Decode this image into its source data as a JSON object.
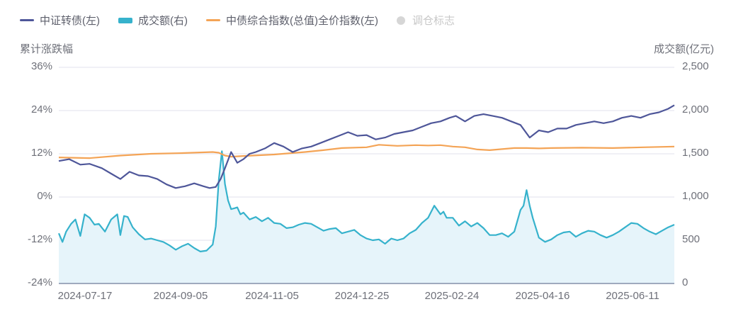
{
  "legend": [
    {
      "label": "中证转债(左)",
      "color": "#4e5699",
      "marker": "line"
    },
    {
      "label": "成交额(右)",
      "color": "#36b2cc",
      "marker": "rect"
    },
    {
      "label": "中债综合指数(总值)全价指数(左)",
      "color": "#f4a456",
      "marker": "line"
    },
    {
      "label": "调仓标志",
      "color": "#d6d6d6",
      "marker": "dot",
      "disabled": true
    }
  ],
  "axes": {
    "left_title": "累计涨跌幅",
    "right_title": "成交额(亿元)",
    "left_ticks": [
      "36%",
      "24%",
      "12%",
      "0%",
      "-12%",
      "-24%"
    ],
    "right_ticks": [
      "2,500",
      "2,000",
      "1,500",
      "1,000",
      "500",
      "0"
    ],
    "x_ticks": [
      "2024-07-17",
      "2024-09-05",
      "2024-11-05",
      "2024-12-25",
      "2025-02-24",
      "2025-04-16",
      "2025-06-11"
    ]
  },
  "chart_data": {
    "type": "line",
    "title": "",
    "xlabel": "",
    "ylabel_left": "累计涨跌幅",
    "ylabel_right": "成交额(亿元)",
    "ylim_left": [
      -24,
      36
    ],
    "ylim_right": [
      0,
      2500
    ],
    "grid": true,
    "legend_position": "top-left",
    "x_range": [
      "2024-07-01",
      "2025-07-04"
    ],
    "x_ticks": [
      "2024-07-17",
      "2024-09-05",
      "2024-11-05",
      "2024-12-25",
      "2025-02-24",
      "2025-04-16",
      "2025-06-11"
    ],
    "series": [
      {
        "name": "中证转债(左)",
        "axis": "left",
        "type": "line",
        "color": "#4e5699",
        "x_frac": [
          0,
          0.017,
          0.035,
          0.05,
          0.07,
          0.085,
          0.1,
          0.115,
          0.13,
          0.145,
          0.16,
          0.175,
          0.19,
          0.205,
          0.22,
          0.235,
          0.245,
          0.255,
          0.263,
          0.27,
          0.28,
          0.29,
          0.3,
          0.31,
          0.32,
          0.335,
          0.35,
          0.365,
          0.38,
          0.395,
          0.41,
          0.425,
          0.44,
          0.455,
          0.47,
          0.485,
          0.5,
          0.515,
          0.53,
          0.545,
          0.56,
          0.575,
          0.59,
          0.605,
          0.62,
          0.635,
          0.645,
          0.66,
          0.675,
          0.69,
          0.705,
          0.72,
          0.735,
          0.75,
          0.765,
          0.78,
          0.795,
          0.81,
          0.825,
          0.84,
          0.855,
          0.87,
          0.885,
          0.9,
          0.915,
          0.93,
          0.945,
          0.96,
          0.975,
          0.99,
          1.0
        ],
        "values": [
          10,
          10.5,
          9,
          9.2,
          8,
          6.5,
          5,
          7,
          6,
          5.8,
          5,
          3.5,
          2.5,
          3,
          3.8,
          3,
          2.5,
          2.8,
          5,
          8,
          12.5,
          9.5,
          10.5,
          12,
          12.5,
          13.5,
          15,
          14,
          12.5,
          13.5,
          14,
          15,
          16,
          17,
          18,
          17,
          17.2,
          16,
          16.5,
          17.5,
          18,
          18.5,
          19.5,
          20.5,
          21,
          22,
          22.5,
          21,
          22.5,
          23,
          22.5,
          22,
          21,
          20,
          16.5,
          18.5,
          18,
          19,
          19,
          20,
          20.5,
          21,
          20.5,
          21,
          22,
          22.5,
          22,
          23,
          23.5,
          24.5,
          25.5
        ]
      },
      {
        "name": "中债综合指数(总值)全价指数(左)",
        "axis": "left",
        "type": "line",
        "color": "#f4a456",
        "x_frac": [
          0,
          0.05,
          0.1,
          0.15,
          0.2,
          0.25,
          0.26,
          0.27,
          0.28,
          0.3,
          0.35,
          0.4,
          0.43,
          0.46,
          0.5,
          0.52,
          0.55,
          0.58,
          0.6,
          0.62,
          0.64,
          0.66,
          0.68,
          0.7,
          0.72,
          0.74,
          0.76,
          0.78,
          0.8,
          0.85,
          0.9,
          0.95,
          1.0
        ],
        "values": [
          11,
          10.8,
          11.5,
          12,
          12.2,
          12.5,
          12.3,
          11.5,
          11.2,
          11.4,
          11.8,
          12.5,
          13,
          13.6,
          13.8,
          14.5,
          14.2,
          14.4,
          14.3,
          14.4,
          14.0,
          13.8,
          13.2,
          13.0,
          13.3,
          13.6,
          13.6,
          13.5,
          13.6,
          13.7,
          13.6,
          13.8,
          14.0
        ]
      },
      {
        "name": "成交额(右)",
        "axis": "right",
        "type": "area",
        "color": "#36b2cc",
        "fill": "#e6f4fa",
        "x_frac": [
          0,
          0.006,
          0.012,
          0.02,
          0.027,
          0.035,
          0.042,
          0.05,
          0.058,
          0.065,
          0.075,
          0.085,
          0.095,
          0.1,
          0.106,
          0.112,
          0.12,
          0.13,
          0.14,
          0.15,
          0.16,
          0.17,
          0.18,
          0.19,
          0.2,
          0.21,
          0.22,
          0.23,
          0.24,
          0.25,
          0.255,
          0.26,
          0.265,
          0.27,
          0.275,
          0.28,
          0.285,
          0.29,
          0.295,
          0.3,
          0.31,
          0.32,
          0.33,
          0.34,
          0.35,
          0.36,
          0.37,
          0.38,
          0.39,
          0.4,
          0.41,
          0.42,
          0.43,
          0.44,
          0.45,
          0.46,
          0.47,
          0.48,
          0.49,
          0.5,
          0.51,
          0.52,
          0.53,
          0.54,
          0.55,
          0.56,
          0.57,
          0.58,
          0.59,
          0.6,
          0.61,
          0.62,
          0.625,
          0.63,
          0.64,
          0.65,
          0.66,
          0.67,
          0.68,
          0.69,
          0.7,
          0.71,
          0.72,
          0.73,
          0.74,
          0.75,
          0.755,
          0.76,
          0.765,
          0.77,
          0.78,
          0.79,
          0.8,
          0.81,
          0.82,
          0.83,
          0.84,
          0.85,
          0.86,
          0.87,
          0.88,
          0.89,
          0.9,
          0.91,
          0.92,
          0.93,
          0.94,
          0.95,
          0.96,
          0.97,
          0.98,
          0.99,
          1.0
        ],
        "values": [
          580,
          480,
          600,
          690,
          740,
          550,
          800,
          760,
          680,
          690,
          600,
          740,
          800,
          560,
          780,
          770,
          650,
          570,
          510,
          520,
          500,
          480,
          440,
          390,
          430,
          460,
          410,
          370,
          380,
          450,
          660,
          1200,
          1530,
          1150,
          960,
          860,
          870,
          880,
          800,
          820,
          740,
          770,
          720,
          760,
          700,
          690,
          640,
          650,
          680,
          700,
          690,
          650,
          610,
          630,
          640,
          580,
          600,
          620,
          560,
          520,
          500,
          510,
          460,
          520,
          500,
          520,
          580,
          620,
          700,
          760,
          900,
          800,
          830,
          760,
          760,
          670,
          720,
          660,
          700,
          640,
          560,
          560,
          580,
          540,
          600,
          850,
          900,
          1080,
          900,
          760,
          530,
          480,
          510,
          560,
          590,
          600,
          540,
          580,
          610,
          600,
          560,
          530,
          560,
          600,
          650,
          700,
          690,
          640,
          600,
          570,
          610,
          650,
          680,
          760
        ]
      }
    ]
  }
}
